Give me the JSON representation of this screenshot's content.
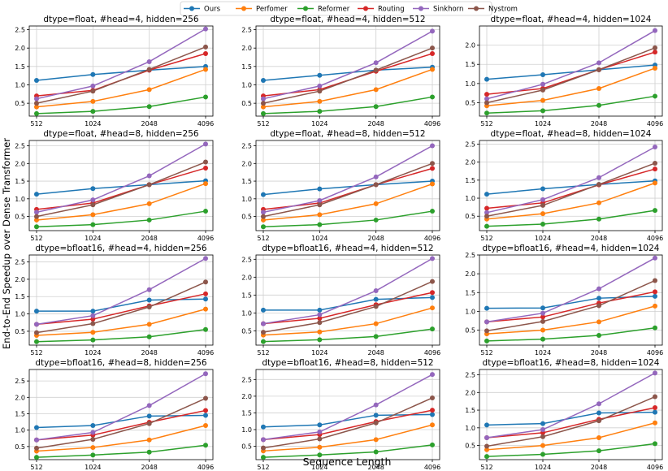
{
  "legend_order": [
    "Ours",
    "Perfomer",
    "Reformer",
    "Routing",
    "Sinkhorn",
    "Nystrom"
  ],
  "ylabel": "End-to-End Speedup over Dense Transformer",
  "xlabel": "Sequence Length",
  "x_ticks": [
    "512",
    "1024",
    "2048",
    "4096"
  ],
  "chart_data": [
    {
      "type": "line",
      "title": "dtype=float, #head=4, hidden=256",
      "categories": [
        "512",
        "1024",
        "2048",
        "4096"
      ],
      "ylim": [
        0.15,
        2.6
      ],
      "yticks": [
        "0.5",
        "1.0",
        "1.5",
        "2.0",
        "2.5"
      ],
      "series": [
        {
          "name": "Ours",
          "color": "#1f77b4",
          "values": [
            1.12,
            1.28,
            1.4,
            1.5
          ]
        },
        {
          "name": "Perfomer",
          "color": "#ff7f0e",
          "values": [
            0.4,
            0.55,
            0.87,
            1.42
          ]
        },
        {
          "name": "Reformer",
          "color": "#2ca02c",
          "values": [
            0.22,
            0.28,
            0.41,
            0.67
          ]
        },
        {
          "name": "Routing",
          "color": "#d62728",
          "values": [
            0.7,
            0.85,
            1.4,
            1.85
          ]
        },
        {
          "name": "Sinkhorn",
          "color": "#9467bd",
          "values": [
            0.62,
            0.97,
            1.63,
            2.52
          ]
        },
        {
          "name": "Nystrom",
          "color": "#8c564b",
          "values": [
            0.5,
            0.83,
            1.42,
            2.03
          ]
        }
      ]
    },
    {
      "type": "line",
      "title": "dtype=float, #head=4, hidden=512",
      "categories": [
        "512",
        "1024",
        "2048",
        "4096"
      ],
      "ylim": [
        0.15,
        2.6
      ],
      "yticks": [
        "0.5",
        "1.0",
        "1.5",
        "2.0",
        "2.5"
      ],
      "series": [
        {
          "name": "Ours",
          "color": "#1f77b4",
          "values": [
            1.12,
            1.26,
            1.4,
            1.48
          ]
        },
        {
          "name": "Perfomer",
          "color": "#ff7f0e",
          "values": [
            0.4,
            0.55,
            0.87,
            1.42
          ]
        },
        {
          "name": "Reformer",
          "color": "#2ca02c",
          "values": [
            0.22,
            0.28,
            0.41,
            0.67
          ]
        },
        {
          "name": "Routing",
          "color": "#d62728",
          "values": [
            0.7,
            0.87,
            1.37,
            1.85
          ]
        },
        {
          "name": "Sinkhorn",
          "color": "#9467bd",
          "values": [
            0.62,
            0.97,
            1.6,
            2.46
          ]
        },
        {
          "name": "Nystrom",
          "color": "#8c564b",
          "values": [
            0.5,
            0.83,
            1.4,
            2.0
          ]
        }
      ]
    },
    {
      "type": "line",
      "title": "dtype=float, #head=4, hidden=1024",
      "categories": [
        "512",
        "1024",
        "2048",
        "4096"
      ],
      "ylim": [
        0.15,
        2.5
      ],
      "yticks": [
        "0.5",
        "1.0",
        "1.5",
        "2.0"
      ],
      "series": [
        {
          "name": "Ours",
          "color": "#1f77b4",
          "values": [
            1.11,
            1.23,
            1.36,
            1.48
          ]
        },
        {
          "name": "Perfomer",
          "color": "#ff7f0e",
          "values": [
            0.42,
            0.56,
            0.87,
            1.4
          ]
        },
        {
          "name": "Reformer",
          "color": "#2ca02c",
          "values": [
            0.23,
            0.29,
            0.43,
            0.67
          ]
        },
        {
          "name": "Routing",
          "color": "#d62728",
          "values": [
            0.72,
            0.87,
            1.36,
            1.82
          ]
        },
        {
          "name": "Sinkhorn",
          "color": "#9467bd",
          "values": [
            0.6,
            0.98,
            1.54,
            2.38
          ]
        },
        {
          "name": "Nystrom",
          "color": "#8c564b",
          "values": [
            0.5,
            0.83,
            1.36,
            1.93
          ]
        }
      ]
    },
    {
      "type": "line",
      "title": "dtype=float, #head=8, hidden=256",
      "categories": [
        "512",
        "1024",
        "2048",
        "4096"
      ],
      "ylim": [
        0.1,
        2.65
      ],
      "yticks": [
        "0.5",
        "1.0",
        "1.5",
        "2.0",
        "2.5"
      ],
      "series": [
        {
          "name": "Ours",
          "color": "#1f77b4",
          "values": [
            1.13,
            1.29,
            1.4,
            1.51
          ]
        },
        {
          "name": "Perfomer",
          "color": "#ff7f0e",
          "values": [
            0.4,
            0.55,
            0.86,
            1.43
          ]
        },
        {
          "name": "Reformer",
          "color": "#2ca02c",
          "values": [
            0.21,
            0.27,
            0.4,
            0.65
          ]
        },
        {
          "name": "Routing",
          "color": "#d62728",
          "values": [
            0.7,
            0.88,
            1.4,
            1.87
          ]
        },
        {
          "name": "Sinkhorn",
          "color": "#9467bd",
          "values": [
            0.62,
            0.97,
            1.65,
            2.55
          ]
        },
        {
          "name": "Nystrom",
          "color": "#8c564b",
          "values": [
            0.5,
            0.83,
            1.4,
            2.04
          ]
        }
      ]
    },
    {
      "type": "line",
      "title": "dtype=float, #head=8, hidden=512",
      "categories": [
        "512",
        "1024",
        "2048",
        "4096"
      ],
      "ylim": [
        0.1,
        2.65
      ],
      "yticks": [
        "0.5",
        "1.0",
        "1.5",
        "2.0",
        "2.5"
      ],
      "series": [
        {
          "name": "Ours",
          "color": "#1f77b4",
          "values": [
            1.12,
            1.28,
            1.4,
            1.5
          ]
        },
        {
          "name": "Perfomer",
          "color": "#ff7f0e",
          "values": [
            0.4,
            0.55,
            0.86,
            1.42
          ]
        },
        {
          "name": "Reformer",
          "color": "#2ca02c",
          "values": [
            0.21,
            0.27,
            0.4,
            0.65
          ]
        },
        {
          "name": "Routing",
          "color": "#d62728",
          "values": [
            0.7,
            0.88,
            1.4,
            1.86
          ]
        },
        {
          "name": "Sinkhorn",
          "color": "#9467bd",
          "values": [
            0.62,
            0.95,
            1.62,
            2.5
          ]
        },
        {
          "name": "Nystrom",
          "color": "#8c564b",
          "values": [
            0.5,
            0.83,
            1.4,
            2.0
          ]
        }
      ]
    },
    {
      "type": "line",
      "title": "dtype=float, #head=8, hidden=1024",
      "categories": [
        "512",
        "1024",
        "2048",
        "4096"
      ],
      "ylim": [
        0.1,
        2.6
      ],
      "yticks": [
        "0.5",
        "1.0",
        "1.5",
        "2.0",
        "2.5"
      ],
      "series": [
        {
          "name": "Ours",
          "color": "#1f77b4",
          "values": [
            1.11,
            1.26,
            1.38,
            1.48
          ]
        },
        {
          "name": "Perfomer",
          "color": "#ff7f0e",
          "values": [
            0.42,
            0.57,
            0.87,
            1.42
          ]
        },
        {
          "name": "Reformer",
          "color": "#2ca02c",
          "values": [
            0.22,
            0.28,
            0.42,
            0.66
          ]
        },
        {
          "name": "Routing",
          "color": "#d62728",
          "values": [
            0.72,
            0.87,
            1.37,
            1.81
          ]
        },
        {
          "name": "Sinkhorn",
          "color": "#9467bd",
          "values": [
            0.6,
            0.96,
            1.57,
            2.42
          ]
        },
        {
          "name": "Nystrom",
          "color": "#8c564b",
          "values": [
            0.5,
            0.8,
            1.38,
            1.97
          ]
        }
      ]
    },
    {
      "type": "line",
      "title": "dtype=bfloat16, #head=4, hidden=256",
      "categories": [
        "512",
        "1024",
        "2048",
        "4096"
      ],
      "ylim": [
        0.1,
        2.7
      ],
      "yticks": [
        "0.5",
        "1.0",
        "1.5",
        "2.0",
        "2.5"
      ],
      "series": [
        {
          "name": "Ours",
          "color": "#1f77b4",
          "values": [
            1.08,
            1.08,
            1.4,
            1.43
          ]
        },
        {
          "name": "Perfomer",
          "color": "#ff7f0e",
          "values": [
            0.38,
            0.47,
            0.7,
            1.14
          ]
        },
        {
          "name": "Reformer",
          "color": "#2ca02c",
          "values": [
            0.2,
            0.25,
            0.34,
            0.55
          ]
        },
        {
          "name": "Routing",
          "color": "#d62728",
          "values": [
            0.7,
            0.85,
            1.23,
            1.58
          ]
        },
        {
          "name": "Sinkhorn",
          "color": "#9467bd",
          "values": [
            0.7,
            0.95,
            1.7,
            2.6
          ]
        },
        {
          "name": "Nystrom",
          "color": "#8c564b",
          "values": [
            0.46,
            0.72,
            1.2,
            1.92
          ]
        }
      ]
    },
    {
      "type": "line",
      "title": "dtype=bfloat16, #head=4, hidden=512",
      "categories": [
        "512",
        "1024",
        "2048",
        "4096"
      ],
      "ylim": [
        0.1,
        2.62
      ],
      "yticks": [
        "0.5",
        "1.0",
        "1.5",
        "2.0",
        "2.5"
      ],
      "series": [
        {
          "name": "Ours",
          "color": "#1f77b4",
          "values": [
            1.08,
            1.08,
            1.38,
            1.43
          ]
        },
        {
          "name": "Perfomer",
          "color": "#ff7f0e",
          "values": [
            0.38,
            0.47,
            0.7,
            1.14
          ]
        },
        {
          "name": "Reformer",
          "color": "#2ca02c",
          "values": [
            0.2,
            0.25,
            0.34,
            0.55
          ]
        },
        {
          "name": "Routing",
          "color": "#d62728",
          "values": [
            0.7,
            0.85,
            1.23,
            1.57
          ]
        },
        {
          "name": "Sinkhorn",
          "color": "#9467bd",
          "values": [
            0.7,
            0.95,
            1.62,
            2.52
          ]
        },
        {
          "name": "Nystrom",
          "color": "#8c564b",
          "values": [
            0.46,
            0.73,
            1.18,
            1.88
          ]
        }
      ]
    },
    {
      "type": "line",
      "title": "dtype=bfloat16, #head=4, hidden=1024",
      "categories": [
        "512",
        "1024",
        "2048",
        "4096"
      ],
      "ylim": [
        0.1,
        2.5
      ],
      "yticks": [
        "0.5",
        "1.0",
        "1.5",
        "2.0",
        "2.5"
      ],
      "series": [
        {
          "name": "Ours",
          "color": "#1f77b4",
          "values": [
            1.08,
            1.09,
            1.35,
            1.4
          ]
        },
        {
          "name": "Perfomer",
          "color": "#ff7f0e",
          "values": [
            0.4,
            0.5,
            0.72,
            1.14
          ]
        },
        {
          "name": "Reformer",
          "color": "#2ca02c",
          "values": [
            0.21,
            0.26,
            0.36,
            0.56
          ]
        },
        {
          "name": "Routing",
          "color": "#d62728",
          "values": [
            0.72,
            0.85,
            1.22,
            1.52
          ]
        },
        {
          "name": "Sinkhorn",
          "color": "#9467bd",
          "values": [
            0.72,
            0.95,
            1.6,
            2.42
          ]
        },
        {
          "name": "Nystrom",
          "color": "#8c564b",
          "values": [
            0.48,
            0.73,
            1.15,
            1.82
          ]
        }
      ]
    },
    {
      "type": "line",
      "title": "dtype=bfloat16, #head=8, hidden=256",
      "categories": [
        "512",
        "1024",
        "2048",
        "4096"
      ],
      "ylim": [
        0.1,
        2.85
      ],
      "yticks": [
        "0.5",
        "1.0",
        "1.5",
        "2.0",
        "2.5"
      ],
      "series": [
        {
          "name": "Ours",
          "color": "#1f77b4",
          "values": [
            1.08,
            1.14,
            1.43,
            1.45
          ]
        },
        {
          "name": "Perfomer",
          "color": "#ff7f0e",
          "values": [
            0.36,
            0.47,
            0.7,
            1.14
          ]
        },
        {
          "name": "Reformer",
          "color": "#2ca02c",
          "values": [
            0.17,
            0.24,
            0.33,
            0.54
          ]
        },
        {
          "name": "Routing",
          "color": "#d62728",
          "values": [
            0.7,
            0.85,
            1.24,
            1.6
          ]
        },
        {
          "name": "Sinkhorn",
          "color": "#9467bd",
          "values": [
            0.7,
            0.93,
            1.75,
            2.72
          ]
        },
        {
          "name": "Nystrom",
          "color": "#8c564b",
          "values": [
            0.45,
            0.72,
            1.2,
            1.97
          ]
        }
      ]
    },
    {
      "type": "line",
      "title": "dtype=bfloat16, #head=8, hidden=512",
      "categories": [
        "512",
        "1024",
        "2048",
        "4096"
      ],
      "ylim": [
        0.1,
        2.8
      ],
      "yticks": [
        "0.5",
        "1.0",
        "1.5",
        "2.0",
        "2.5"
      ],
      "series": [
        {
          "name": "Ours",
          "color": "#1f77b4",
          "values": [
            1.08,
            1.14,
            1.43,
            1.45
          ]
        },
        {
          "name": "Perfomer",
          "color": "#ff7f0e",
          "values": [
            0.36,
            0.47,
            0.7,
            1.14
          ]
        },
        {
          "name": "Reformer",
          "color": "#2ca02c",
          "values": [
            0.17,
            0.24,
            0.33,
            0.54
          ]
        },
        {
          "name": "Routing",
          "color": "#d62728",
          "values": [
            0.7,
            0.85,
            1.24,
            1.58
          ]
        },
        {
          "name": "Sinkhorn",
          "color": "#9467bd",
          "values": [
            0.7,
            0.93,
            1.74,
            2.65
          ]
        },
        {
          "name": "Nystrom",
          "color": "#8c564b",
          "values": [
            0.45,
            0.72,
            1.2,
            1.95
          ]
        }
      ]
    },
    {
      "type": "line",
      "title": "dtype=bfloat16, #head=8, hidden=1024",
      "categories": [
        "512",
        "1024",
        "2048",
        "4096"
      ],
      "ylim": [
        0.1,
        2.65
      ],
      "yticks": [
        "0.5",
        "1.0",
        "1.5",
        "2.0",
        "2.5"
      ],
      "series": [
        {
          "name": "Ours",
          "color": "#1f77b4",
          "values": [
            1.08,
            1.12,
            1.42,
            1.44
          ]
        },
        {
          "name": "Perfomer",
          "color": "#ff7f0e",
          "values": [
            0.38,
            0.5,
            0.72,
            1.14
          ]
        },
        {
          "name": "Reformer",
          "color": "#2ca02c",
          "values": [
            0.19,
            0.25,
            0.35,
            0.55
          ]
        },
        {
          "name": "Routing",
          "color": "#d62728",
          "values": [
            0.72,
            0.86,
            1.24,
            1.57
          ]
        },
        {
          "name": "Sinkhorn",
          "color": "#9467bd",
          "values": [
            0.72,
            0.95,
            1.68,
            2.55
          ]
        },
        {
          "name": "Nystrom",
          "color": "#8c564b",
          "values": [
            0.48,
            0.75,
            1.2,
            1.88
          ]
        }
      ]
    }
  ]
}
